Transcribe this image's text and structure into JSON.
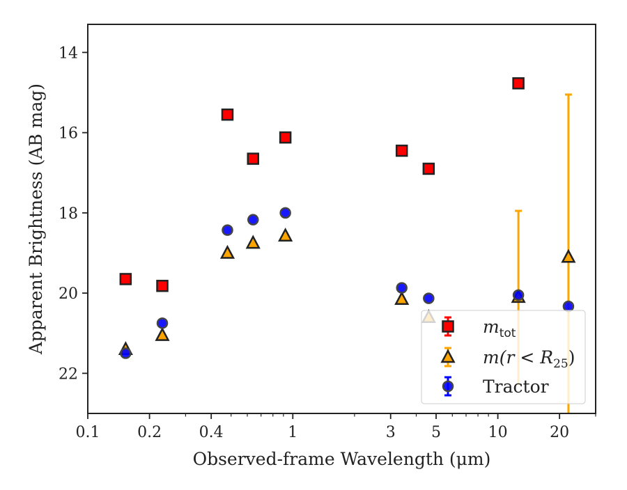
{
  "chart_data": {
    "type": "scatter",
    "xscale": "log",
    "yscale": "linear",
    "yaxis_inverted": true,
    "xlim": [
      0.1,
      30
    ],
    "ylim": [
      23,
      13.3
    ],
    "xlabel": "Observed-frame Wavelength (μm)",
    "ylabel": "Apparent Brightness (AB mag)",
    "xticks": [
      {
        "value": 0.1,
        "label": "0.1"
      },
      {
        "value": 0.2,
        "label": "0.2"
      },
      {
        "value": 0.4,
        "label": "0.4"
      },
      {
        "value": 1,
        "label": "1"
      },
      {
        "value": 3,
        "label": "3"
      },
      {
        "value": 5,
        "label": "5"
      },
      {
        "value": 10,
        "label": "10"
      },
      {
        "value": 20,
        "label": "20"
      }
    ],
    "xminor": [
      0.3,
      0.5,
      0.6,
      0.7,
      0.8,
      0.9,
      2,
      4,
      6,
      7,
      8,
      9,
      30
    ],
    "yticks": [
      {
        "value": 14,
        "label": "14"
      },
      {
        "value": 16,
        "label": "16"
      },
      {
        "value": 18,
        "label": "18"
      },
      {
        "value": 20,
        "label": "20"
      },
      {
        "value": 22,
        "label": "22"
      }
    ],
    "legend_position": "lower-right",
    "grid": false,
    "series": [
      {
        "name_main": "m",
        "name_sub": "tot",
        "marker": "square",
        "color": "#ff0000",
        "edge": "#222222",
        "points": [
          {
            "x": 0.153,
            "y": 19.65
          },
          {
            "x": 0.231,
            "y": 19.82
          },
          {
            "x": 0.48,
            "y": 15.55
          },
          {
            "x": 0.64,
            "y": 16.65
          },
          {
            "x": 0.92,
            "y": 16.12
          },
          {
            "x": 3.4,
            "y": 16.45
          },
          {
            "x": 4.6,
            "y": 16.9
          },
          {
            "x": 12.6,
            "y": 14.77
          }
        ]
      },
      {
        "name_text": "m(r < R",
        "name_sub": "25",
        "name_close": ")",
        "marker": "triangle",
        "color": "#ffa500",
        "edge": "#222222",
        "points": [
          {
            "x": 0.153,
            "y": 21.4
          },
          {
            "x": 0.231,
            "y": 21.05
          },
          {
            "x": 0.48,
            "y": 19.0
          },
          {
            "x": 0.64,
            "y": 18.75
          },
          {
            "x": 0.92,
            "y": 18.57
          },
          {
            "x": 3.4,
            "y": 20.15
          },
          {
            "x": 4.6,
            "y": 20.6
          },
          {
            "x": 12.6,
            "y": 20.1,
            "yerr_low": 17.95,
            "yerr_high": 22.3
          },
          {
            "x": 22.1,
            "y": 19.1,
            "yerr_low": 15.05,
            "yerr_high": 23.0
          }
        ]
      },
      {
        "name": "Tractor",
        "marker": "circle",
        "color": "#0000ff",
        "edge": "#444444",
        "points": [
          {
            "x": 0.153,
            "y": 21.5
          },
          {
            "x": 0.231,
            "y": 20.75
          },
          {
            "x": 0.48,
            "y": 18.43
          },
          {
            "x": 0.64,
            "y": 18.17
          },
          {
            "x": 0.92,
            "y": 18.0
          },
          {
            "x": 3.4,
            "y": 19.87
          },
          {
            "x": 4.6,
            "y": 20.13
          },
          {
            "x": 12.6,
            "y": 20.05
          },
          {
            "x": 22.1,
            "y": 20.33
          }
        ]
      }
    ]
  }
}
